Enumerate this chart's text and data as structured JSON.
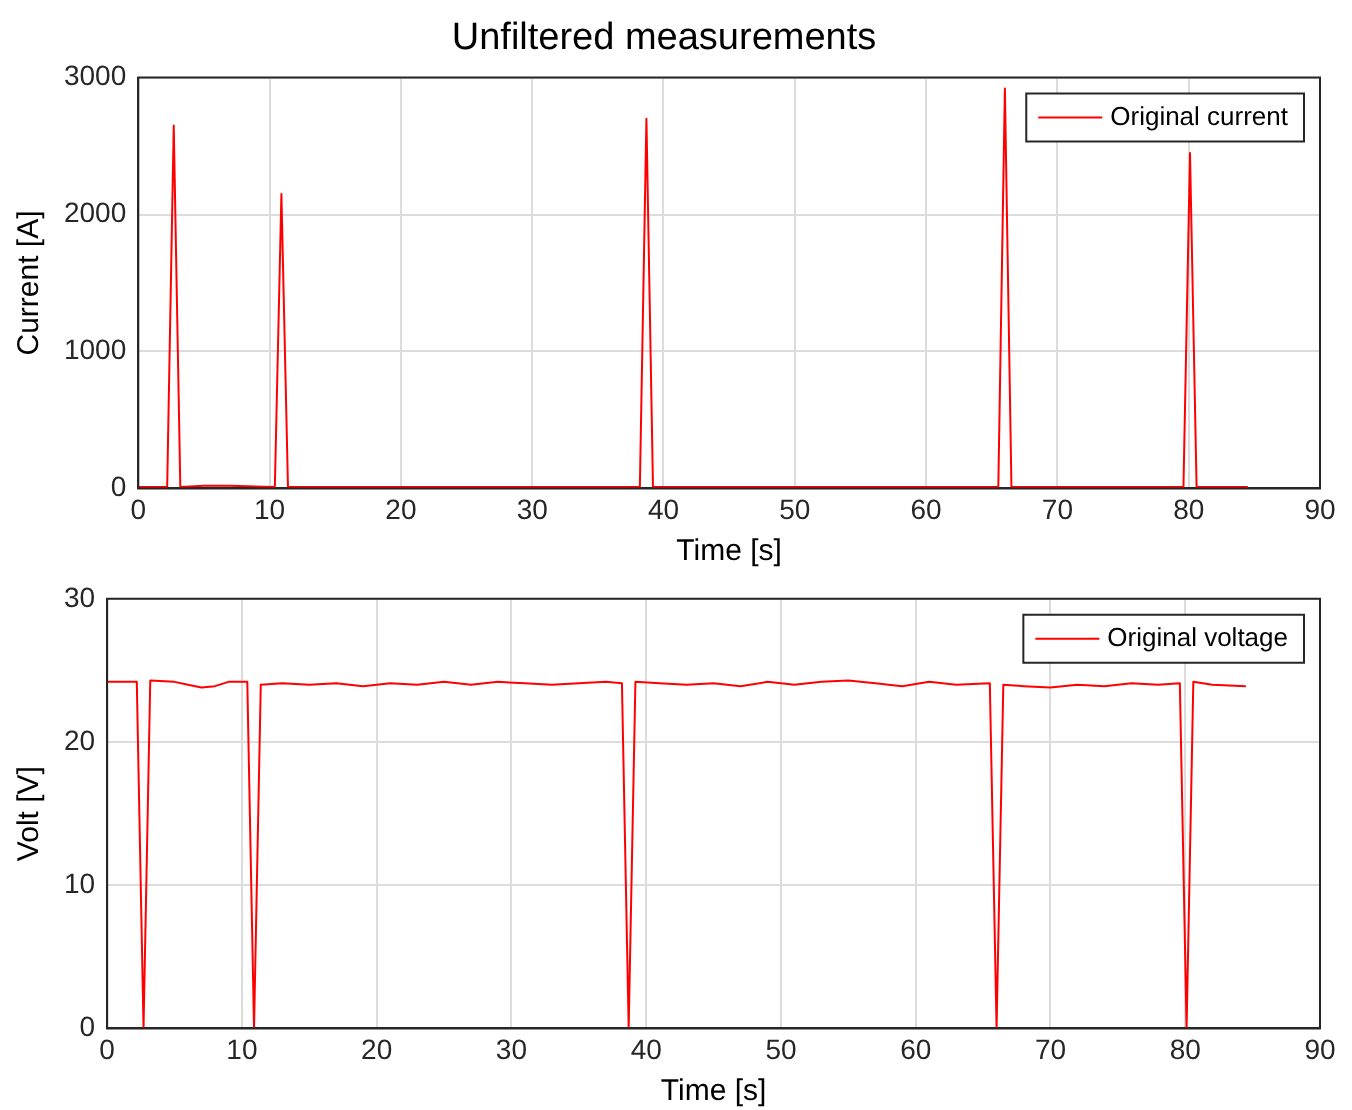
{
  "chart_data": [
    {
      "type": "line",
      "title": "Unfiltered measurements",
      "xlabel": "Time [s]",
      "ylabel": "Current [A]",
      "xlim": [
        0,
        90
      ],
      "xticks": [
        0,
        10,
        20,
        30,
        40,
        50,
        60,
        70,
        80,
        90
      ],
      "ylim": [
        0,
        3000
      ],
      "yticks": [
        0,
        1000,
        2000,
        3000
      ],
      "grid": true,
      "legend": "top right",
      "series": [
        {
          "name": "Original current",
          "color": "#ff0000",
          "x": [
            0,
            2.2,
            2.7,
            3.2,
            5,
            7,
            10.4,
            10.9,
            11.4,
            15,
            20,
            25,
            30,
            35,
            38.2,
            38.7,
            39.2,
            45,
            50,
            55,
            60,
            65.5,
            66,
            66.5,
            70,
            75,
            79.6,
            80.1,
            80.6,
            84.5
          ],
          "values": [
            10,
            10,
            2650,
            10,
            20,
            20,
            10,
            2150,
            10,
            10,
            10,
            10,
            10,
            10,
            10,
            2700,
            10,
            10,
            10,
            10,
            10,
            10,
            2920,
            10,
            10,
            10,
            10,
            2450,
            10,
            10
          ]
        }
      ]
    },
    {
      "type": "line",
      "xlabel": "Time [s]",
      "ylabel": "Volt [V]",
      "xlim": [
        0,
        90
      ],
      "xticks": [
        0,
        10,
        20,
        30,
        40,
        50,
        60,
        70,
        80,
        90
      ],
      "ylim": [
        0,
        30
      ],
      "yticks": [
        0,
        10,
        20,
        30
      ],
      "grid": true,
      "legend": "top right",
      "series": [
        {
          "name": "Original voltage",
          "color": "#ff0000",
          "x": [
            0,
            2.2,
            2.7,
            3.2,
            5,
            6,
            7,
            8,
            9,
            10.4,
            10.9,
            11.4,
            13,
            15,
            17,
            19,
            21,
            23,
            25,
            27,
            29,
            31,
            33,
            35,
            37,
            38.2,
            38.7,
            39.2,
            41,
            43,
            45,
            47,
            49,
            51,
            53,
            55,
            57,
            59,
            61,
            63,
            65.5,
            66,
            66.5,
            68,
            70,
            72,
            74,
            76,
            78,
            79.6,
            80.1,
            80.6,
            82,
            84.5
          ],
          "values": [
            24.2,
            24.2,
            0,
            24.3,
            24.2,
            24.0,
            23.8,
            23.9,
            24.2,
            24.2,
            0,
            24.0,
            24.1,
            24.0,
            24.1,
            23.9,
            24.1,
            24.0,
            24.2,
            24.0,
            24.2,
            24.1,
            24.0,
            24.1,
            24.2,
            24.1,
            0,
            24.2,
            24.1,
            24.0,
            24.1,
            23.9,
            24.2,
            24.0,
            24.2,
            24.3,
            24.1,
            23.9,
            24.2,
            24.0,
            24.1,
            0,
            24.0,
            23.9,
            23.8,
            24.0,
            23.9,
            24.1,
            24.0,
            24.1,
            0,
            24.2,
            24.0,
            23.9
          ]
        }
      ]
    }
  ]
}
